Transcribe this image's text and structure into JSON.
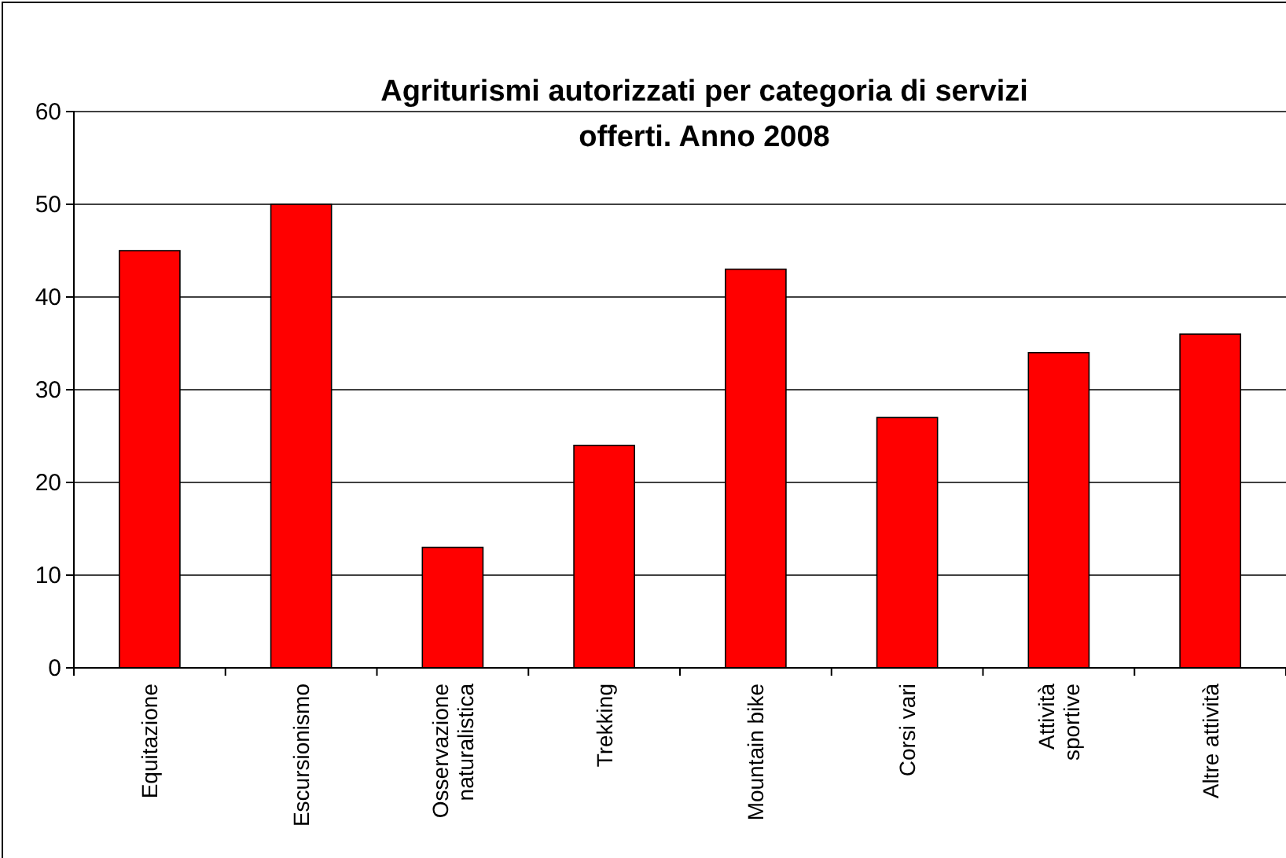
{
  "chart_data": {
    "type": "bar",
    "title": "Agriturismi autorizzati per categoria di servizi offerti. Anno 2008",
    "categories": [
      "Equitazione",
      "Escursionismo",
      "Osservazione\nnaturalistica",
      "Trekking",
      "Mountain bike",
      "Corsi vari",
      "Attività\nsportive",
      "Altre  attività"
    ],
    "values": [
      45,
      50,
      13,
      24,
      43,
      27,
      34,
      36
    ],
    "color": "#ff0000",
    "ylim": [
      0,
      60
    ],
    "yticks": [
      0,
      10,
      20,
      30,
      40,
      50,
      60
    ],
    "grid": "y"
  }
}
